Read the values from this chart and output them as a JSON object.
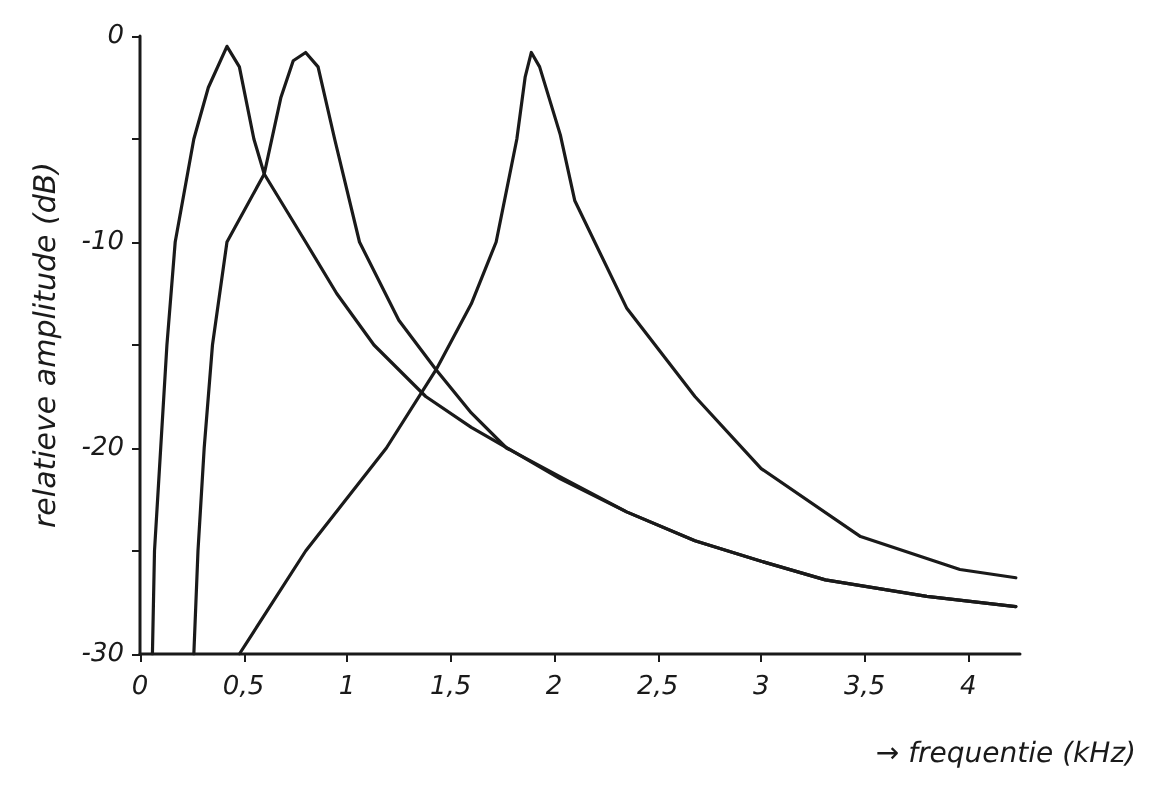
{
  "chart_data": {
    "type": "line",
    "xlabel": "→ frequentie (kHz)",
    "ylabel": "relatieve amplitude (dB)",
    "xlim": [
      0,
      4.25
    ],
    "ylim": [
      -30,
      0
    ],
    "xticks": [
      0,
      {
        "value": 0.5,
        "label": "0,5"
      },
      1,
      {
        "value": 1.5,
        "label": "1,5"
      },
      2,
      {
        "value": 2.5,
        "label": "2,5"
      },
      3,
      {
        "value": 3.5,
        "label": "3,5"
      },
      4
    ],
    "yticks": [
      -30,
      {
        "value": -25,
        "label": null
      },
      -20,
      {
        "value": -15,
        "label": null
      },
      -10,
      {
        "value": -5,
        "label": null
      },
      0
    ],
    "grid": false,
    "marker": "none",
    "line_style": "solid",
    "series": [
      {
        "color": "#1a1a1a",
        "x": [
          0.06,
          0.07,
          0.1,
          0.13,
          0.17,
          0.26,
          0.33,
          0.42,
          0.48,
          0.55,
          0.6,
          0.8,
          0.95,
          1.13,
          1.38,
          1.6,
          1.86,
          2.03,
          2.35,
          2.68,
          3.0,
          3.31,
          3.8,
          4.23
        ],
        "values": [
          -30,
          -25,
          -20,
          -15,
          -10,
          -5,
          -2.5,
          -0.5,
          -1.5,
          -5,
          -6.7,
          -10,
          -12.5,
          -15,
          -17.5,
          -19,
          -20.5,
          -21.5,
          -23.1,
          -24.5,
          -25.5,
          -26.4,
          -27.2,
          -27.7
        ]
      },
      {
        "color": "#1a1a1a",
        "x": [
          0.26,
          0.28,
          0.31,
          0.35,
          0.42,
          0.6,
          0.68,
          0.74,
          0.8,
          0.86,
          0.94,
          1.06,
          1.25,
          1.43,
          1.6,
          1.77,
          2.03,
          2.35,
          2.68,
          3.0,
          3.31,
          3.8,
          4.23
        ],
        "values": [
          -30,
          -25,
          -20,
          -15,
          -10,
          -6.7,
          -3,
          -1.2,
          -0.8,
          -1.5,
          -5,
          -10,
          -13.8,
          -16.2,
          -18.3,
          -20,
          -21.4,
          -23.1,
          -24.5,
          -25.5,
          -26.4,
          -27.2,
          -27.7
        ]
      },
      {
        "color": "#1a1a1a",
        "x": [
          0.48,
          0.8,
          1.19,
          1.43,
          1.6,
          1.72,
          1.82,
          1.86,
          1.89,
          1.93,
          2.03,
          2.1,
          2.35,
          2.68,
          3.0,
          3.48,
          3.96,
          4.23
        ],
        "values": [
          -30,
          -25,
          -20,
          -16.2,
          -13,
          -10,
          -5,
          -2,
          -0.8,
          -1.5,
          -4.8,
          -8,
          -13.2,
          -17.5,
          -21,
          -24.3,
          -25.9,
          -26.3
        ]
      }
    ]
  }
}
